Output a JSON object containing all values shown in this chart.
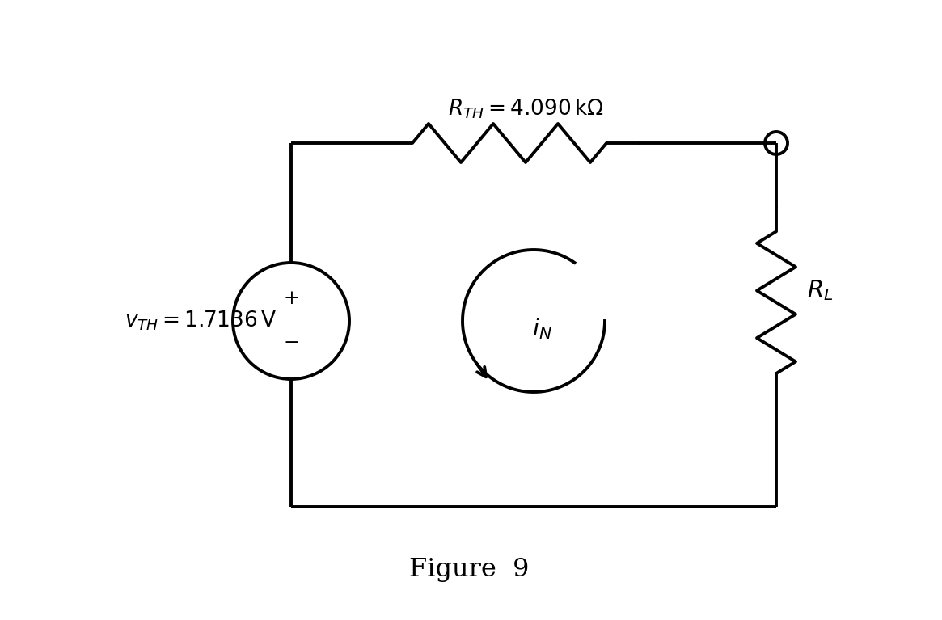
{
  "title": "Figure  9",
  "vth_label": "$v_{TH} = 1.7136\\,\\mathrm{V}$",
  "rth_label": "$R_{TH} = 4.090\\,\\mathrm{k\\Omega}$",
  "rl_label": "$R_L$",
  "in_label": "$i_N$",
  "plus_label": "+",
  "minus_label": "−",
  "bg_color": "#ffffff",
  "line_color": "#000000",
  "lw": 2.8,
  "fig_width": 11.65,
  "fig_height": 7.67,
  "dpi": 100
}
